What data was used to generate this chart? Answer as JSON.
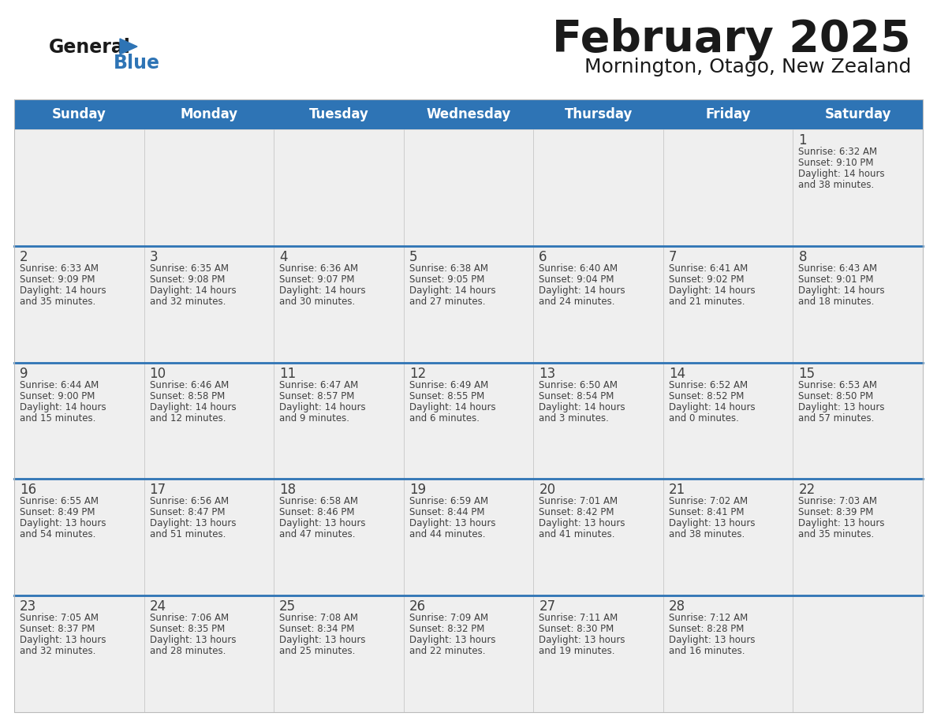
{
  "title": "February 2025",
  "subtitle": "Mornington, Otago, New Zealand",
  "days_of_week": [
    "Sunday",
    "Monday",
    "Tuesday",
    "Wednesday",
    "Thursday",
    "Friday",
    "Saturday"
  ],
  "header_bg": "#2E74B5",
  "header_text": "#FFFFFF",
  "cell_bg_light": "#FFFFFF",
  "cell_bg_gray": "#EFEFEF",
  "separator_color": "#2E74B5",
  "day_number_color": "#404040",
  "info_text_color": "#404040",
  "title_color": "#1A1A1A",
  "subtitle_color": "#1A1A1A",
  "logo_general_color": "#1A1A1A",
  "logo_blue_color": "#2E74B5",
  "calendar_data": [
    [
      null,
      null,
      null,
      null,
      null,
      null,
      {
        "day": 1,
        "sunrise": "6:32 AM",
        "sunset": "9:10 PM",
        "daylight": "14 hours",
        "daylight2": "and 38 minutes."
      }
    ],
    [
      {
        "day": 2,
        "sunrise": "6:33 AM",
        "sunset": "9:09 PM",
        "daylight": "14 hours",
        "daylight2": "and 35 minutes."
      },
      {
        "day": 3,
        "sunrise": "6:35 AM",
        "sunset": "9:08 PM",
        "daylight": "14 hours",
        "daylight2": "and 32 minutes."
      },
      {
        "day": 4,
        "sunrise": "6:36 AM",
        "sunset": "9:07 PM",
        "daylight": "14 hours",
        "daylight2": "and 30 minutes."
      },
      {
        "day": 5,
        "sunrise": "6:38 AM",
        "sunset": "9:05 PM",
        "daylight": "14 hours",
        "daylight2": "and 27 minutes."
      },
      {
        "day": 6,
        "sunrise": "6:40 AM",
        "sunset": "9:04 PM",
        "daylight": "14 hours",
        "daylight2": "and 24 minutes."
      },
      {
        "day": 7,
        "sunrise": "6:41 AM",
        "sunset": "9:02 PM",
        "daylight": "14 hours",
        "daylight2": "and 21 minutes."
      },
      {
        "day": 8,
        "sunrise": "6:43 AM",
        "sunset": "9:01 PM",
        "daylight": "14 hours",
        "daylight2": "and 18 minutes."
      }
    ],
    [
      {
        "day": 9,
        "sunrise": "6:44 AM",
        "sunset": "9:00 PM",
        "daylight": "14 hours",
        "daylight2": "and 15 minutes."
      },
      {
        "day": 10,
        "sunrise": "6:46 AM",
        "sunset": "8:58 PM",
        "daylight": "14 hours",
        "daylight2": "and 12 minutes."
      },
      {
        "day": 11,
        "sunrise": "6:47 AM",
        "sunset": "8:57 PM",
        "daylight": "14 hours",
        "daylight2": "and 9 minutes."
      },
      {
        "day": 12,
        "sunrise": "6:49 AM",
        "sunset": "8:55 PM",
        "daylight": "14 hours",
        "daylight2": "and 6 minutes."
      },
      {
        "day": 13,
        "sunrise": "6:50 AM",
        "sunset": "8:54 PM",
        "daylight": "14 hours",
        "daylight2": "and 3 minutes."
      },
      {
        "day": 14,
        "sunrise": "6:52 AM",
        "sunset": "8:52 PM",
        "daylight": "14 hours",
        "daylight2": "and 0 minutes."
      },
      {
        "day": 15,
        "sunrise": "6:53 AM",
        "sunset": "8:50 PM",
        "daylight": "13 hours",
        "daylight2": "and 57 minutes."
      }
    ],
    [
      {
        "day": 16,
        "sunrise": "6:55 AM",
        "sunset": "8:49 PM",
        "daylight": "13 hours",
        "daylight2": "and 54 minutes."
      },
      {
        "day": 17,
        "sunrise": "6:56 AM",
        "sunset": "8:47 PM",
        "daylight": "13 hours",
        "daylight2": "and 51 minutes."
      },
      {
        "day": 18,
        "sunrise": "6:58 AM",
        "sunset": "8:46 PM",
        "daylight": "13 hours",
        "daylight2": "and 47 minutes."
      },
      {
        "day": 19,
        "sunrise": "6:59 AM",
        "sunset": "8:44 PM",
        "daylight": "13 hours",
        "daylight2": "and 44 minutes."
      },
      {
        "day": 20,
        "sunrise": "7:01 AM",
        "sunset": "8:42 PM",
        "daylight": "13 hours",
        "daylight2": "and 41 minutes."
      },
      {
        "day": 21,
        "sunrise": "7:02 AM",
        "sunset": "8:41 PM",
        "daylight": "13 hours",
        "daylight2": "and 38 minutes."
      },
      {
        "day": 22,
        "sunrise": "7:03 AM",
        "sunset": "8:39 PM",
        "daylight": "13 hours",
        "daylight2": "and 35 minutes."
      }
    ],
    [
      {
        "day": 23,
        "sunrise": "7:05 AM",
        "sunset": "8:37 PM",
        "daylight": "13 hours",
        "daylight2": "and 32 minutes."
      },
      {
        "day": 24,
        "sunrise": "7:06 AM",
        "sunset": "8:35 PM",
        "daylight": "13 hours",
        "daylight2": "and 28 minutes."
      },
      {
        "day": 25,
        "sunrise": "7:08 AM",
        "sunset": "8:34 PM",
        "daylight": "13 hours",
        "daylight2": "and 25 minutes."
      },
      {
        "day": 26,
        "sunrise": "7:09 AM",
        "sunset": "8:32 PM",
        "daylight": "13 hours",
        "daylight2": "and 22 minutes."
      },
      {
        "day": 27,
        "sunrise": "7:11 AM",
        "sunset": "8:30 PM",
        "daylight": "13 hours",
        "daylight2": "and 19 minutes."
      },
      {
        "day": 28,
        "sunrise": "7:12 AM",
        "sunset": "8:28 PM",
        "daylight": "13 hours",
        "daylight2": "and 16 minutes."
      },
      null
    ]
  ]
}
